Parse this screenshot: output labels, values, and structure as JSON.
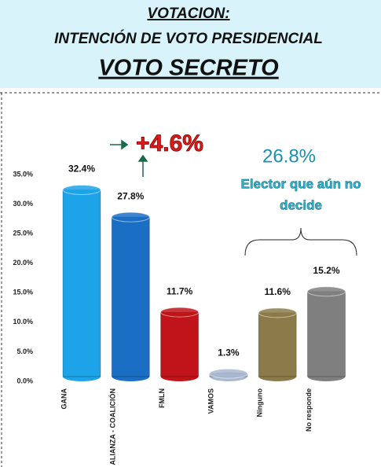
{
  "chart_data": {
    "type": "bar",
    "title": [
      "VOTACION:",
      "INTENCIÓN DE VOTO PRESIDENCIAL",
      "VOTO SECRETO"
    ],
    "categories": [
      "GANA",
      "ALIANZA - COALICIÓN",
      "FMLN",
      "VAMOS",
      "Ninguno",
      "No responde"
    ],
    "values": [
      32.4,
      27.8,
      11.7,
      1.3,
      11.6,
      15.2
    ],
    "value_labels": [
      "32.4%",
      "27.8%",
      "11.7%",
      "1.3%",
      "11.6%",
      "15.2%"
    ],
    "colors": [
      "#1ca3e8",
      "#1a6fc4",
      "#c0141a",
      "#a9b8d0",
      "#8c7b4a",
      "#7f7f7f"
    ],
    "ylim": [
      0,
      35
    ],
    "yticks": [
      {
        "value": 0,
        "label": "0.0%"
      },
      {
        "value": 5,
        "label": "5.0%"
      },
      {
        "value": 10,
        "label": "10.0%"
      },
      {
        "value": 15,
        "label": "15.0%"
      },
      {
        "value": 20,
        "label": "20.0%"
      },
      {
        "value": 25,
        "label": "25.0%"
      },
      {
        "value": 30,
        "label": "30.0%"
      },
      {
        "value": 35,
        "label": "35.0%"
      }
    ],
    "annotations": [
      "+4.6%",
      "26.8%",
      "Elector que aún no",
      "decide"
    ]
  }
}
